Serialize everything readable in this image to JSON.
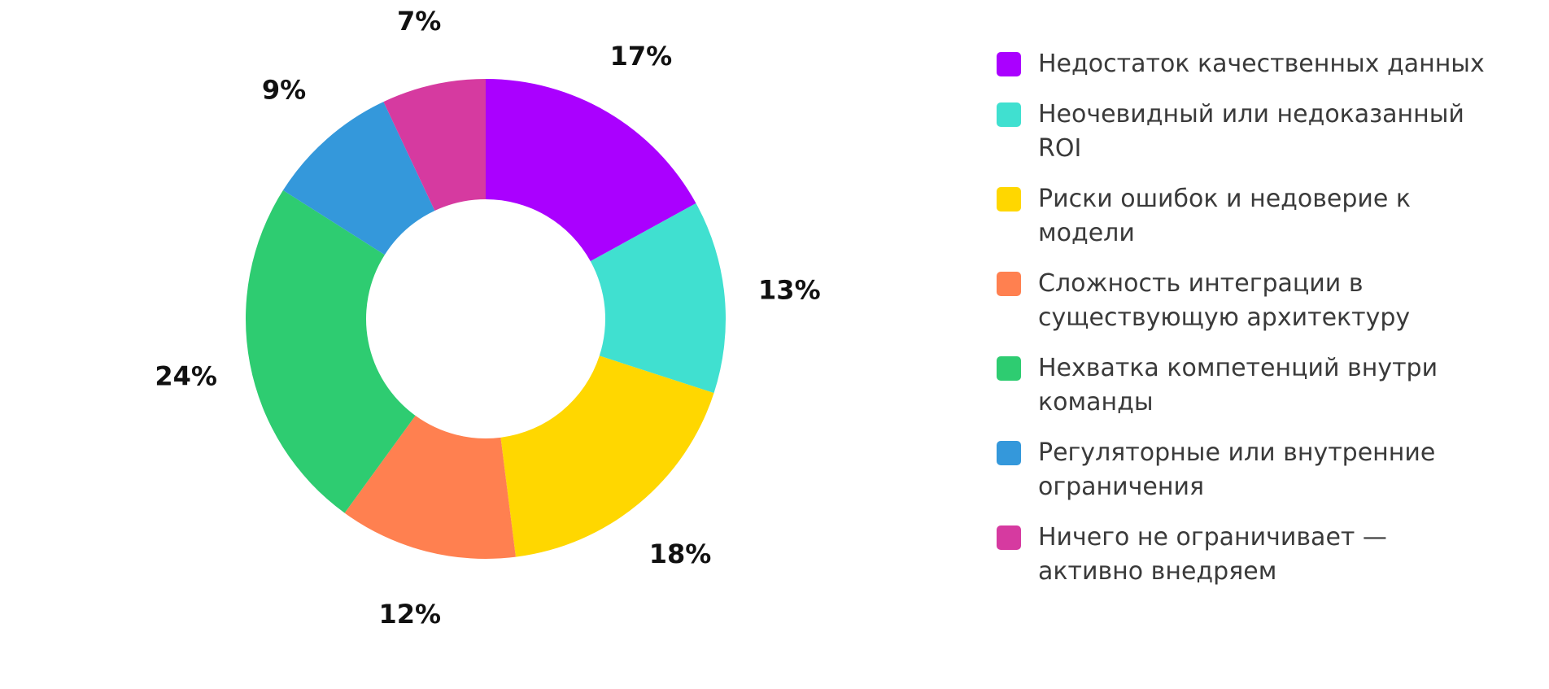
{
  "chart_data": {
    "type": "pie",
    "donut": true,
    "legend_position": "right",
    "slices": [
      {
        "label": "Недостаток качественных данных",
        "value": 17,
        "display": "17%",
        "color": "#aa00ff"
      },
      {
        "label": "Неочевидный или недоказанный ROI",
        "value": 13,
        "display": "13%",
        "color": "#40e0d0"
      },
      {
        "label": "Риски ошибок и недоверие к модели",
        "value": 18,
        "display": "18%",
        "color": "#ffd700"
      },
      {
        "label": "Сложность интеграции в существующую архитектуру",
        "value": 12,
        "display": "12%",
        "color": "#ff8050"
      },
      {
        "label": "Нехватка компетенций внутри команды",
        "value": 24,
        "display": "24%",
        "color": "#2ecc71"
      },
      {
        "label": "Регуляторные или внутренние ограничения",
        "value": 9,
        "display": "9%",
        "color": "#3498db"
      },
      {
        "label": "Ничего не ограничивает — активно внедряем",
        "value": 7,
        "display": "7%",
        "color": "#d63aa0"
      }
    ]
  }
}
